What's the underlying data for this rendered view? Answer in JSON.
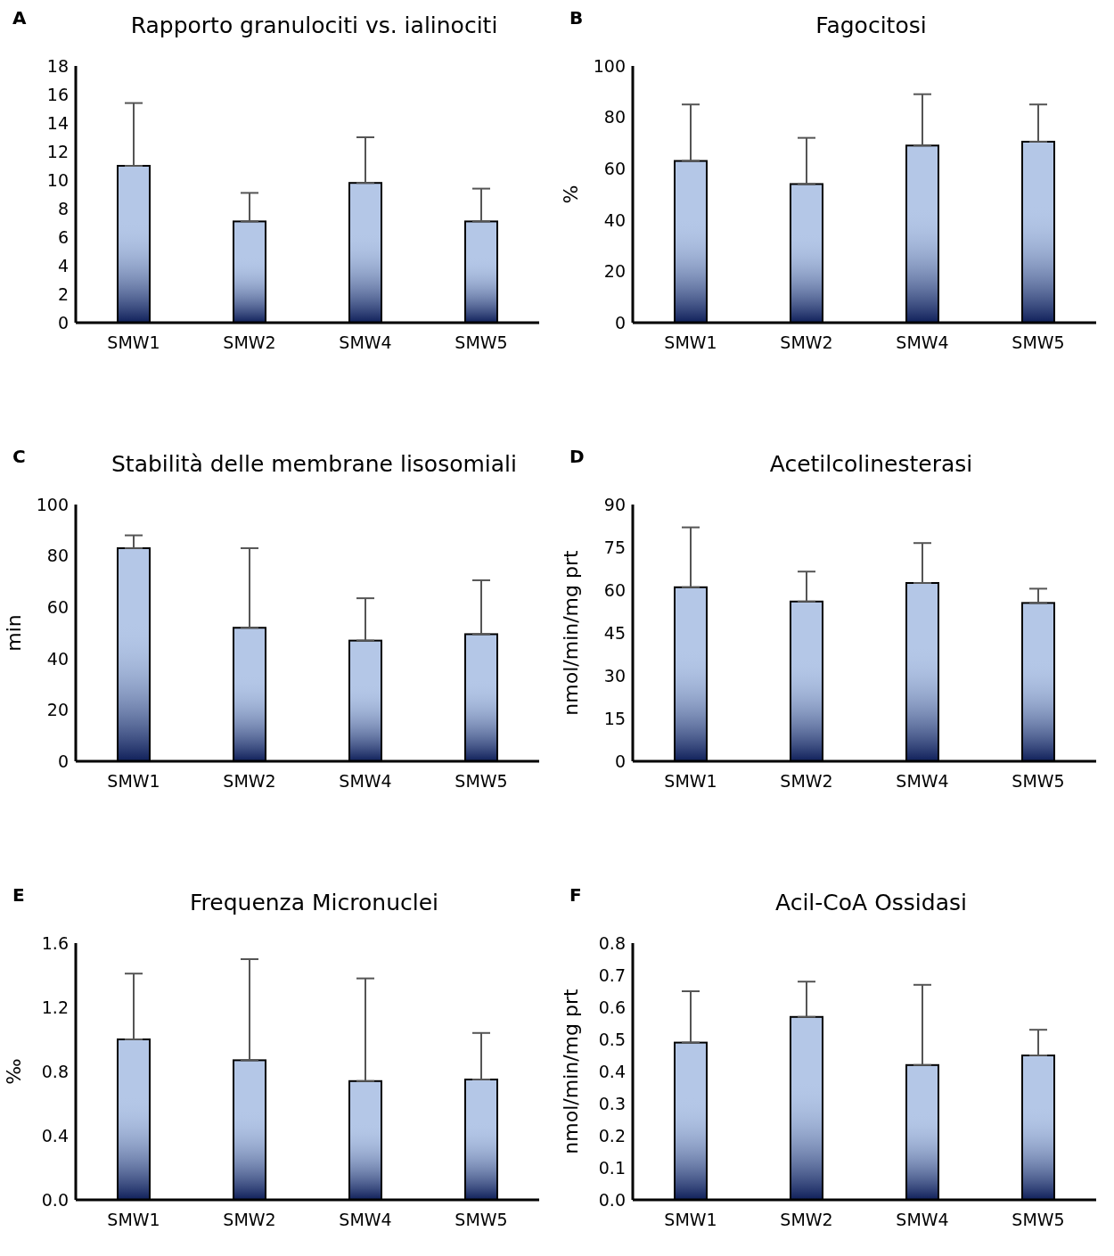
{
  "chart_data": [
    {
      "type": "bar",
      "title": "Rapporto granulociti vs. ialinociti",
      "annotations": [
        "A"
      ],
      "categories": [
        "SMW1",
        "SMW2",
        "SMW4",
        "SMW5"
      ],
      "values": [
        11.0,
        7.1,
        9.8,
        7.1
      ],
      "errors": [
        [
          11.0,
          15.4
        ],
        [
          7.1,
          9.1
        ],
        [
          9.8,
          13.0
        ],
        [
          7.1,
          9.4
        ]
      ],
      "color": "#b4c7e7",
      "ylim": [
        0,
        18
      ],
      "yticks": [
        0,
        2,
        4,
        6,
        8,
        10,
        12,
        14,
        16,
        18
      ]
    },
    {
      "type": "bar",
      "title": "Fagocitosi",
      "ylabel": "%",
      "annotations": [
        "B"
      ],
      "categories": [
        "SMW1",
        "SMW2",
        "SMW4",
        "SMW5"
      ],
      "values": [
        63,
        54,
        69,
        70.5
      ],
      "errors": [
        [
          63,
          85
        ],
        [
          54,
          72
        ],
        [
          69,
          89
        ],
        [
          70.5,
          85
        ]
      ],
      "color": "#b4c7e7",
      "ylim": [
        0,
        100
      ],
      "yticks": [
        0,
        20,
        40,
        60,
        80,
        100
      ]
    },
    {
      "type": "bar",
      "title": "Stabilità delle membrane lisosomiali",
      "ylabel": "min",
      "annotations": [
        "C"
      ],
      "categories": [
        "SMW1",
        "SMW2",
        "SMW4",
        "SMW5"
      ],
      "values": [
        83,
        52,
        47,
        49.5
      ],
      "errors": [
        [
          83,
          88
        ],
        [
          52,
          83
        ],
        [
          47,
          63.5
        ],
        [
          49.5,
          70.5
        ]
      ],
      "color": "#b4c7e7",
      "ylim": [
        0,
        100
      ],
      "yticks": [
        0,
        20,
        40,
        60,
        80,
        100
      ]
    },
    {
      "type": "bar",
      "title": "Acetilcolinesterasi",
      "ylabel": "nmol/min/mg prt",
      "annotations": [
        "D"
      ],
      "categories": [
        "SMW1",
        "SMW2",
        "SMW4",
        "SMW5"
      ],
      "values": [
        61,
        56,
        62.5,
        55.5
      ],
      "errors": [
        [
          61,
          82
        ],
        [
          56,
          66.5
        ],
        [
          62.5,
          76.5
        ],
        [
          55.5,
          60.5
        ]
      ],
      "color": "#b4c7e7",
      "ylim": [
        0,
        90
      ],
      "yticks": [
        0,
        15,
        30,
        45,
        60,
        75,
        90
      ]
    },
    {
      "type": "bar",
      "title": "Frequenza Micronuclei",
      "ylabel": "‰",
      "annotations": [
        "E"
      ],
      "categories": [
        "SMW1",
        "SMW2",
        "SMW4",
        "SMW5"
      ],
      "values": [
        1.0,
        0.87,
        0.74,
        0.75
      ],
      "errors": [
        [
          1.0,
          1.41
        ],
        [
          0.87,
          1.5
        ],
        [
          0.74,
          1.38
        ],
        [
          0.75,
          1.04
        ]
      ],
      "color": "#b4c7e7",
      "ylim": [
        0,
        1.6
      ],
      "yticks": [
        {
          "value": 0,
          "label": "0.0"
        },
        {
          "value": 0.4,
          "label": "0.4"
        },
        {
          "value": 0.8,
          "label": "0.8"
        },
        {
          "value": 1.2,
          "label": "1.2"
        },
        {
          "value": 1.6,
          "label": "1.6"
        }
      ]
    },
    {
      "type": "bar",
      "title": "Acil-CoA Ossidasi",
      "ylabel": "nmol/min/mg prt",
      "annotations": [
        "F"
      ],
      "categories": [
        "SMW1",
        "SMW2",
        "SMW4",
        "SMW5"
      ],
      "values": [
        0.49,
        0.57,
        0.42,
        0.45
      ],
      "errors": [
        [
          0.49,
          0.65
        ],
        [
          0.57,
          0.68
        ],
        [
          0.42,
          0.67
        ],
        [
          0.45,
          0.53
        ]
      ],
      "color": "#b4c7e7",
      "ylim": [
        0,
        0.8
      ],
      "yticks": [
        {
          "value": 0,
          "label": "0.0"
        },
        {
          "value": 0.1,
          "label": "0.1"
        },
        {
          "value": 0.2,
          "label": "0.2"
        },
        {
          "value": 0.3,
          "label": "0.3"
        },
        {
          "value": 0.4,
          "label": "0.4"
        },
        {
          "value": 0.5,
          "label": "0.5"
        },
        {
          "value": 0.6,
          "label": "0.6"
        },
        {
          "value": 0.7,
          "label": "0.7"
        },
        {
          "value": 0.8,
          "label": "0.8"
        }
      ]
    }
  ]
}
